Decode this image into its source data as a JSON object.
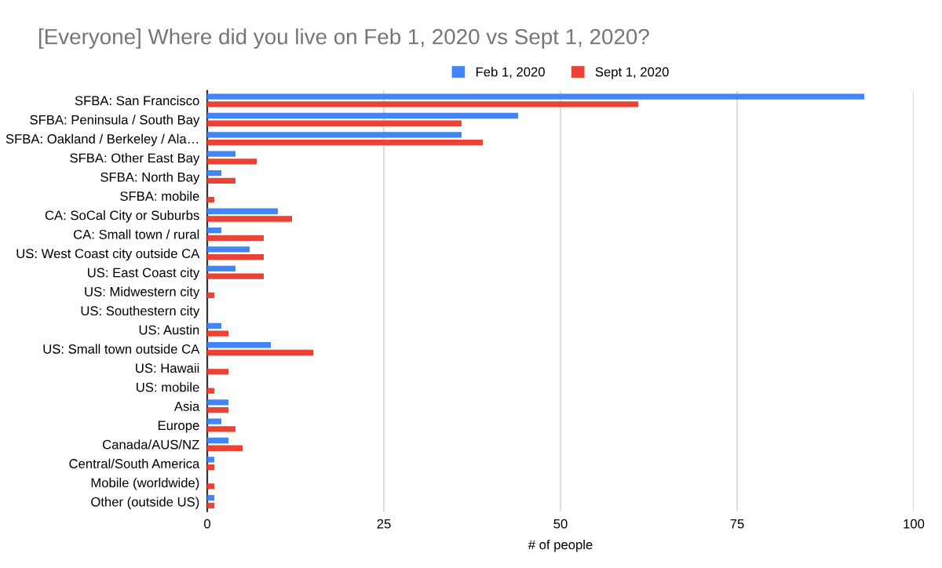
{
  "chart_data": {
    "type": "bar",
    "orientation": "horizontal",
    "title": "[Everyone] Where did you live on Feb 1, 2020 vs Sept 1, 2020?",
    "xlabel": "# of people",
    "categories": [
      "SFBA: San Francisco",
      "SFBA: Peninsula / South Bay",
      "SFBA: Oakland / Berkeley / Ala…",
      "SFBA: Other East Bay",
      "SFBA: North Bay",
      "SFBA: mobile",
      "CA: SoCal City or Suburbs",
      "CA: Small town / rural",
      "US: West Coast city outside CA",
      "US: East Coast city",
      "US: Midwestern city",
      "US: Southestern city",
      "US: Austin",
      "US: Small town outside CA",
      "US: Hawaii",
      "US: mobile",
      "Asia",
      "Europe",
      "Canada/AUS/NZ",
      "Central/South America",
      "Mobile (worldwide)",
      "Other (outside US)"
    ],
    "series": [
      {
        "name": "Feb 1, 2020",
        "color": "#4285f4",
        "values": [
          93,
          44,
          36,
          4,
          2,
          0,
          10,
          2,
          6,
          4,
          0,
          0,
          2,
          9,
          0,
          0,
          3,
          2,
          3,
          1,
          0,
          1
        ]
      },
      {
        "name": "Sept 1, 2020",
        "color": "#ea4335",
        "values": [
          61,
          36,
          39,
          7,
          4,
          1,
          12,
          8,
          8,
          8,
          1,
          0,
          3,
          15,
          3,
          1,
          3,
          4,
          5,
          1,
          1,
          1
        ]
      }
    ],
    "xlim": [
      0,
      100
    ],
    "xticks": [
      0,
      25,
      50,
      75,
      100
    ],
    "grid": "x",
    "legend": "top"
  }
}
